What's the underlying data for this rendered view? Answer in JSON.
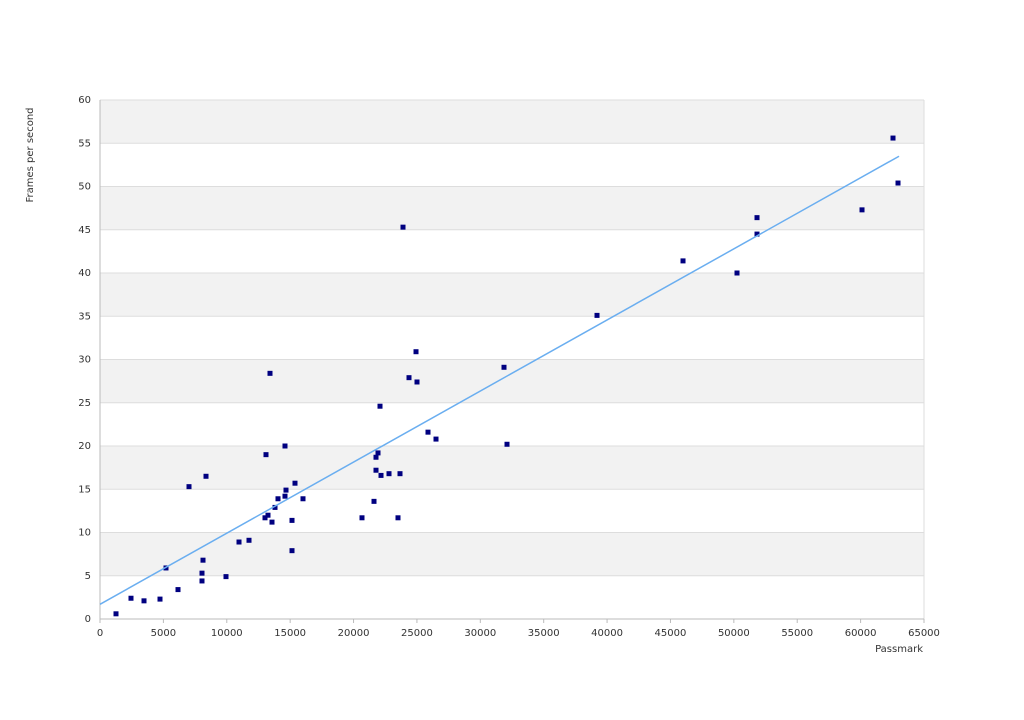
{
  "chart_data": {
    "type": "scatter",
    "y_label": "Frames per second",
    "x_label": "Passmark",
    "xlim": [
      0,
      65000
    ],
    "xticks": [
      0,
      5000,
      10000,
      15000,
      20000,
      25000,
      30000,
      35000,
      40000,
      45000,
      50000,
      55000,
      60000,
      65000
    ],
    "ylim": [
      0,
      60
    ],
    "yticks": [
      0,
      5,
      10,
      15,
      20,
      25,
      30,
      35,
      40,
      45,
      50,
      55,
      60
    ],
    "banded_grid": true,
    "series": [
      {
        "color": "#000080",
        "x": [
          1262,
          2445,
          3471,
          4733,
          5206,
          6153,
          7021,
          8046,
          8046,
          8125,
          8362,
          9939,
          10965,
          11754,
          13016,
          13094,
          13252,
          13410,
          13568,
          13805,
          14041,
          14593,
          14672,
          14593,
          15146,
          15146,
          15382,
          16013,
          20667,
          21614,
          21772,
          21772,
          21930,
          22167,
          22088,
          22798,
          23507,
          23665,
          23902,
          24375,
          24928,
          25006,
          25874,
          26505,
          31869,
          32106,
          39206,
          45990,
          50249,
          51827,
          51827,
          60110,
          62555,
          62950
        ],
        "values": [
          0.6,
          2.4,
          2.1,
          2.3,
          5.9,
          3.4,
          15.3,
          4.4,
          5.3,
          6.8,
          16.5,
          4.9,
          8.9,
          9.1,
          11.7,
          19.0,
          12.0,
          28.4,
          11.2,
          12.9,
          13.9,
          20.0,
          14.9,
          14.2,
          11.4,
          7.9,
          15.7,
          13.9,
          11.7,
          13.6,
          17.2,
          18.7,
          19.2,
          16.6,
          24.6,
          16.8,
          11.7,
          16.8,
          45.3,
          27.9,
          30.9,
          27.4,
          21.6,
          20.8,
          29.1,
          20.2,
          35.1,
          41.4,
          40.0,
          46.4,
          44.5,
          47.3,
          55.6,
          50.4
        ]
      }
    ],
    "trendline": {
      "color": "#6aaef0",
      "x": [
        0,
        63030
      ],
      "values": [
        1.7,
        53.5
      ]
    }
  }
}
